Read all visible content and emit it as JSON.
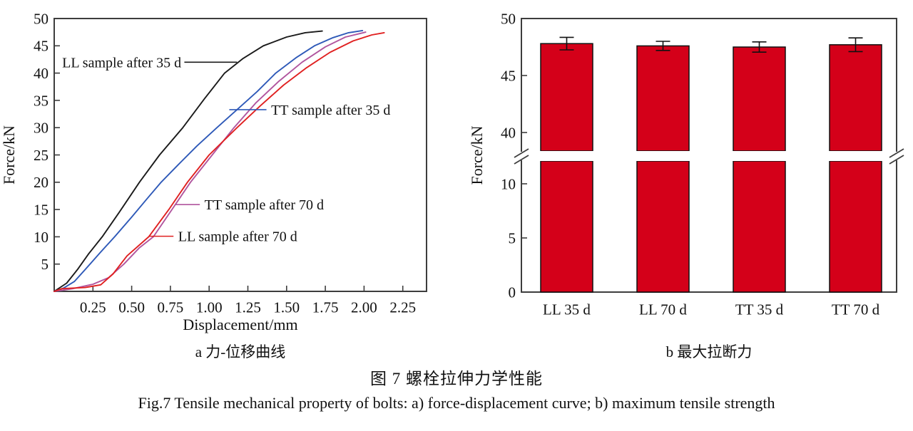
{
  "figure": {
    "caption_a": "a 力-位移曲线",
    "caption_b": "b 最大拉断力",
    "caption_zh": "图 7  螺栓拉伸力学性能",
    "caption_en": "Fig.7 Tensile mechanical property of bolts: a) force-displacement curve; b) maximum tensile strength"
  },
  "colors": {
    "axis": "#3d3d3d",
    "text": "#111111",
    "bar_fill": "#d40019",
    "line_black": "#1a1a1a",
    "line_blue": "#2e59b8",
    "line_magenta": "#b1559e",
    "line_red": "#e02020"
  },
  "chart_data": [
    {
      "type": "line",
      "name": "force-displacement-curve",
      "xlabel": "Displacement/mm",
      "ylabel": "Force/kN",
      "xlim": [
        0,
        2.4
      ],
      "ylim": [
        0,
        50
      ],
      "xticks": [
        0.25,
        0.5,
        0.75,
        1.0,
        1.25,
        1.5,
        1.75,
        2.0,
        2.25
      ],
      "xtick_labels": [
        "0.25",
        "0.50",
        "0.75",
        "1.00",
        "1.25",
        "1.50",
        "1.75",
        "2.00",
        "2.25"
      ],
      "yticks": [
        5,
        10,
        15,
        20,
        25,
        30,
        35,
        40,
        45,
        50
      ],
      "grid": false,
      "series": [
        {
          "name": "LL sample after 35 d",
          "color": "#1a1a1a",
          "x": [
            0,
            0.08,
            0.15,
            0.22,
            0.31,
            0.42,
            0.55,
            0.68,
            0.83,
            0.97,
            1.1,
            1.22,
            1.35,
            1.5,
            1.62,
            1.73
          ],
          "y": [
            0,
            1.5,
            4,
            6.8,
            10,
            14.5,
            20,
            25,
            30,
            35.3,
            40,
            42.7,
            45,
            46.6,
            47.4,
            47.7
          ]
        },
        {
          "name": "TT sample after 35 d",
          "color": "#2e59b8",
          "x": [
            0,
            0.06,
            0.13,
            0.2,
            0.3,
            0.39,
            0.5,
            0.6,
            0.69,
            0.8,
            0.92,
            1.05,
            1.18,
            1.31,
            1.43,
            1.56,
            1.68,
            1.8,
            1.9,
            1.99
          ],
          "y": [
            0,
            0.6,
            1.8,
            4,
            7.2,
            10,
            13.6,
            17,
            20,
            23.2,
            26.6,
            30,
            33.3,
            36.6,
            40,
            42.8,
            45,
            46.5,
            47.4,
            47.8
          ]
        },
        {
          "name": "TT sample after 70 d",
          "color": "#b1559e",
          "x": [
            0,
            0.12,
            0.25,
            0.35,
            0.45,
            0.55,
            0.64,
            0.76,
            0.88,
            1.02,
            1.16,
            1.3,
            1.45,
            1.6,
            1.75,
            1.88,
            2.01
          ],
          "y": [
            0,
            0.5,
            1.3,
            2.5,
            5,
            8,
            10,
            15,
            20,
            25,
            30,
            34.5,
            38.5,
            42,
            44.8,
            46.6,
            47.5
          ]
        },
        {
          "name": "LL sample after 70 d",
          "color": "#e02020",
          "x": [
            0,
            0.05,
            0.2,
            0.3,
            0.38,
            0.47,
            0.61,
            0.74,
            0.86,
            1.0,
            1.18,
            1.33,
            1.48,
            1.63,
            1.78,
            1.93,
            2.05,
            2.13
          ],
          "y": [
            0,
            0.5,
            0.7,
            1.2,
            3.2,
            6.5,
            10,
            15,
            20,
            25,
            30,
            34,
            37.8,
            41,
            43.8,
            45.9,
            47,
            47.4
          ]
        }
      ],
      "annotations": [
        {
          "label": "LL sample after 35 d",
          "color": "#1a1a1a",
          "kN": 42.0,
          "line_mm": [
            0.84,
            1.18
          ],
          "text_mm": 0.82,
          "anchor": "end"
        },
        {
          "label": "TT sample after 35 d",
          "color": "#2e59b8",
          "kN": 33.3,
          "line_mm": [
            1.13,
            1.37
          ],
          "text_mm": 1.4,
          "anchor": "start"
        },
        {
          "label": "TT sample after 70 d",
          "color": "#b1559e",
          "kN": 15.9,
          "line_mm": [
            0.78,
            0.94
          ],
          "text_mm": 0.97,
          "anchor": "start"
        },
        {
          "label": "LL sample after 70 d",
          "color": "#e02020",
          "kN": 10.1,
          "line_mm": [
            0.61,
            0.77
          ],
          "text_mm": 0.8,
          "anchor": "start"
        }
      ]
    },
    {
      "type": "bar",
      "name": "maximum-tensile-strength",
      "ylabel": "Force/kN",
      "categories": [
        "LL 35 d",
        "LL 70 d",
        "TT 35 d",
        "TT 70 d"
      ],
      "values": [
        47.8,
        47.6,
        47.5,
        47.7
      ],
      "errors": [
        0.55,
        0.4,
        0.45,
        0.6
      ],
      "bar_color": "#d40019",
      "ylim": [
        0,
        50
      ],
      "axis_break": {
        "lower_max": 12,
        "upper_min": 38
      },
      "yticks_lower": [
        0,
        5,
        10
      ],
      "yticks_upper": [
        40,
        45,
        50
      ],
      "grid": false
    }
  ]
}
